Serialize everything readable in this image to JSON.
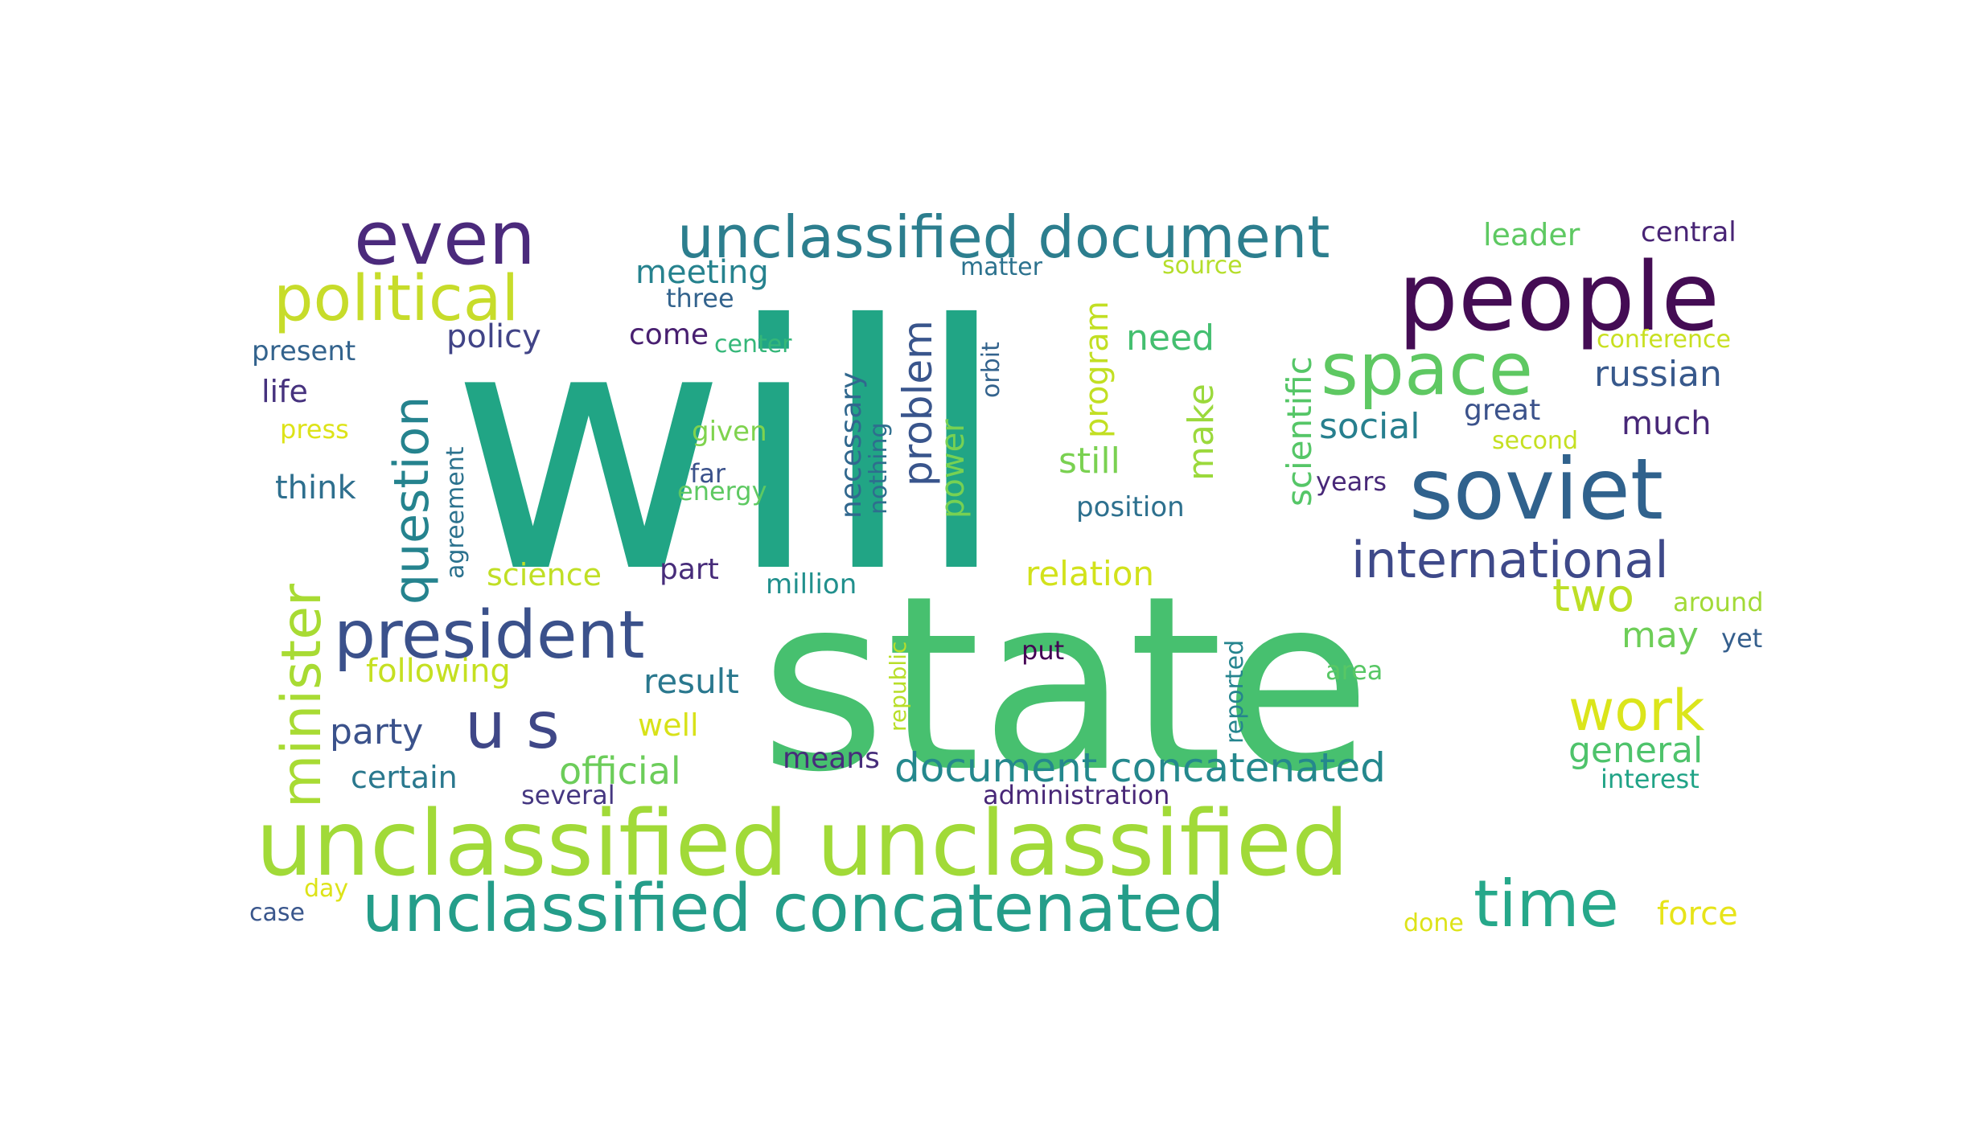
{
  "wordcloud": {
    "background": "#ffffff",
    "words": [
      {
        "text": "will",
        "color": "#21a585",
        "weight": 1.0
      },
      {
        "text": "state",
        "color": "#47c06f",
        "weight": 0.92
      },
      {
        "text": "unclassified unclassified",
        "color": "#a1da38",
        "weight": 0.32
      },
      {
        "text": "people",
        "color": "#440c54",
        "weight": 0.27
      },
      {
        "text": "soviet",
        "color": "#30628d",
        "weight": 0.24
      },
      {
        "text": "unclassified concatenated",
        "color": "#249d89",
        "weight": 0.22
      },
      {
        "text": "space",
        "color": "#5ec862",
        "weight": 0.22
      },
      {
        "text": "even",
        "color": "#4b2a7c",
        "weight": 0.21
      },
      {
        "text": "president",
        "color": "#3b518b",
        "weight": 0.2
      },
      {
        "text": "unclassified document",
        "color": "#2c7e8e",
        "weight": 0.18
      },
      {
        "text": "political",
        "color": "#c7dc2a",
        "weight": 0.18
      },
      {
        "text": "u s",
        "color": "#3f4787",
        "weight": 0.18
      },
      {
        "text": "minister",
        "color": "#a8db33",
        "weight": 0.17
      },
      {
        "text": "time",
        "color": "#26a88a",
        "weight": 0.17
      },
      {
        "text": "work",
        "color": "#dbe51b",
        "weight": 0.16
      },
      {
        "text": "question",
        "color": "#25838e",
        "weight": 0.15
      },
      {
        "text": "international",
        "color": "#3e4989",
        "weight": 0.14
      },
      {
        "text": "problem",
        "color": "#39558c",
        "weight": 0.12
      },
      {
        "text": "document concatenated",
        "color": "#24888d",
        "weight": 0.12
      },
      {
        "text": "two",
        "color": "#bddf26",
        "weight": 0.12
      },
      {
        "text": "general",
        "color": "#4ec36b",
        "weight": 0.11
      },
      {
        "text": "official",
        "color": "#6ccd5a",
        "weight": 0.11
      },
      {
        "text": "party",
        "color": "#3b528b",
        "weight": 0.11
      },
      {
        "text": "russian",
        "color": "#38598c",
        "weight": 0.11
      },
      {
        "text": "scientific",
        "color": "#55c667",
        "weight": 0.11
      },
      {
        "text": "make",
        "color": "#9bd93c",
        "weight": 0.1
      },
      {
        "text": "program",
        "color": "#c2df23",
        "weight": 0.1
      },
      {
        "text": "social",
        "color": "#277f8e",
        "weight": 0.1
      },
      {
        "text": "need",
        "color": "#44bf70",
        "weight": 0.1
      },
      {
        "text": "may",
        "color": "#6ece58",
        "weight": 0.1
      },
      {
        "text": "still",
        "color": "#7ad151",
        "weight": 0.1
      },
      {
        "text": "power",
        "color": "#77d153",
        "weight": 0.1
      },
      {
        "text": "result",
        "color": "#2a788e",
        "weight": 0.09
      },
      {
        "text": "following",
        "color": "#c5e021",
        "weight": 0.09
      },
      {
        "text": "policy",
        "color": "#414487",
        "weight": 0.09
      },
      {
        "text": "relation",
        "color": "#d2e21b",
        "weight": 0.09
      },
      {
        "text": "force",
        "color": "#e7e419",
        "weight": 0.09
      },
      {
        "text": "much",
        "color": "#482878",
        "weight": 0.09
      },
      {
        "text": "think",
        "color": "#2e6f8e",
        "weight": 0.08
      },
      {
        "text": "science",
        "color": "#c0df25",
        "weight": 0.08
      },
      {
        "text": "well",
        "color": "#d8e219",
        "weight": 0.08
      },
      {
        "text": "certain",
        "color": "#2a788e",
        "weight": 0.08
      },
      {
        "text": "life",
        "color": "#46327e",
        "weight": 0.08
      },
      {
        "text": "meeting",
        "color": "#26828e",
        "weight": 0.08
      },
      {
        "text": "means",
        "color": "#472d7b",
        "weight": 0.08
      },
      {
        "text": "great",
        "color": "#3b528b",
        "weight": 0.08
      },
      {
        "text": "leader",
        "color": "#5ec962",
        "weight": 0.08
      },
      {
        "text": "come",
        "color": "#481f70",
        "weight": 0.08
      },
      {
        "text": "part",
        "color": "#472c7a",
        "weight": 0.08
      },
      {
        "text": "necessary",
        "color": "#31688e",
        "weight": 0.08
      },
      {
        "text": "given",
        "color": "#7fd34e",
        "weight": 0.07
      },
      {
        "text": "position",
        "color": "#2d708e",
        "weight": 0.07
      },
      {
        "text": "present",
        "color": "#33638d",
        "weight": 0.07
      },
      {
        "text": "million",
        "color": "#21908d",
        "weight": 0.07
      },
      {
        "text": "central",
        "color": "#482475",
        "weight": 0.07
      },
      {
        "text": "interest",
        "color": "#20a386",
        "weight": 0.07
      },
      {
        "text": "years",
        "color": "#482878",
        "weight": 0.07
      },
      {
        "text": "three",
        "color": "#33638d",
        "weight": 0.07
      },
      {
        "text": "far",
        "color": "#3b528b",
        "weight": 0.07
      },
      {
        "text": "put",
        "color": "#440154",
        "weight": 0.07
      },
      {
        "text": "around",
        "color": "#a2da37",
        "weight": 0.07
      },
      {
        "text": "energy",
        "color": "#5ec962",
        "weight": 0.07
      },
      {
        "text": "yet",
        "color": "#355f8d",
        "weight": 0.07
      },
      {
        "text": "several",
        "color": "#453781",
        "weight": 0.07
      },
      {
        "text": "matter",
        "color": "#2c728e",
        "weight": 0.06
      },
      {
        "text": "center",
        "color": "#35b779",
        "weight": 0.06
      },
      {
        "text": "press",
        "color": "#dde318",
        "weight": 0.06
      },
      {
        "text": "area",
        "color": "#58c765",
        "weight": 0.06
      },
      {
        "text": "administration",
        "color": "#482777",
        "weight": 0.06
      },
      {
        "text": "case",
        "color": "#39568c",
        "weight": 0.06
      },
      {
        "text": "source",
        "color": "#b5de2b",
        "weight": 0.06
      },
      {
        "text": "conference",
        "color": "#c8e020",
        "weight": 0.06
      },
      {
        "text": "second",
        "color": "#c5e021",
        "weight": 0.06
      },
      {
        "text": "nothing",
        "color": "#2e6e8e",
        "weight": 0.06
      },
      {
        "text": "day",
        "color": "#dde318",
        "weight": 0.06
      },
      {
        "text": "done",
        "color": "#dde318",
        "weight": 0.06
      },
      {
        "text": "orbit",
        "color": "#33638d",
        "weight": 0.05
      },
      {
        "text": "agreement",
        "color": "#2c728e",
        "weight": 0.05
      },
      {
        "text": "republic",
        "color": "#b8de29",
        "weight": 0.05
      },
      {
        "text": "reported",
        "color": "#25848e",
        "weight": 0.05
      }
    ]
  }
}
